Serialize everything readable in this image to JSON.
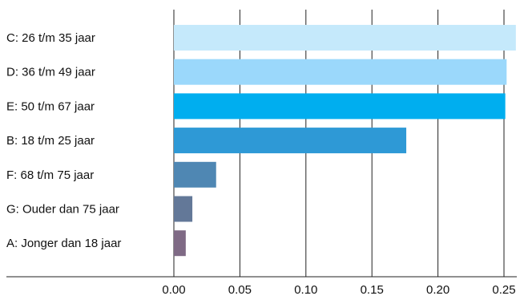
{
  "chart_data": {
    "type": "bar",
    "orientation": "horizontal",
    "title": "",
    "xlabel": "",
    "ylabel": "",
    "categories": [
      "C: 26 t/m 35 jaar",
      "D: 36 t/m 49 jaar",
      "E: 50 t/m 67 jaar",
      "B: 18 t/m 25 jaar",
      "F: 68 t/m 75 jaar",
      "G: Ouder dan 75 jaar",
      "A: Jonger dan 18 jaar"
    ],
    "values": [
      0.259,
      0.252,
      0.251,
      0.176,
      0.032,
      0.014,
      0.009
    ],
    "colors": [
      "#c5e9fb",
      "#9bd8fb",
      "#00aeef",
      "#2e99d6",
      "#4f87b3",
      "#637898",
      "#7f6a85"
    ],
    "xlim": [
      0,
      0.25
    ],
    "xticks": [
      "0.00",
      "0.05",
      "0.10",
      "0.15",
      "0.20",
      "0.25"
    ],
    "grid": true,
    "legend": "none"
  }
}
